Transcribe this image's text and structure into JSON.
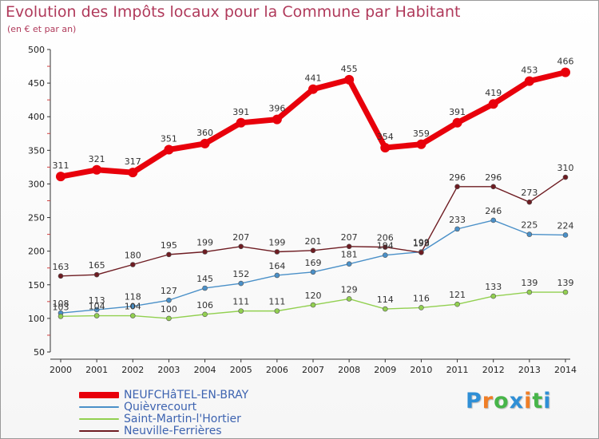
{
  "header": {
    "title": "Evolution des Impôts locaux pour la Commune par Habitant",
    "subtitle": "(en € et par an)"
  },
  "logo": {
    "text": "Proxiti",
    "letter_colors": [
      "#2f8fd6",
      "#f07e26",
      "#47b549",
      "#2f8fd6",
      "#f07e26",
      "#47b549",
      "#2f8fd6"
    ]
  },
  "chart_data": {
    "type": "line",
    "title": "Evolution des Impôts locaux pour la Commune par Habitant",
    "subtitle": "(en € et par an)",
    "xlabel": "",
    "ylabel": "",
    "x": [
      "2000",
      "2001",
      "2002",
      "2003",
      "2004",
      "2005",
      "2006",
      "2007",
      "2008",
      "2009",
      "2010",
      "2011",
      "2012",
      "2013",
      "2014"
    ],
    "ylim": [
      50,
      500
    ],
    "yticks": [
      50,
      100,
      150,
      200,
      250,
      300,
      350,
      400,
      450,
      500
    ],
    "grid": false,
    "legend_position": "bottom-left",
    "series": [
      {
        "name": "NEUFCHâTEL-EN-BRAY",
        "color": "#e8000b",
        "style": "thick",
        "values": [
          311,
          321,
          317,
          351,
          360,
          391,
          396,
          441,
          455,
          354,
          359,
          391,
          419,
          453,
          466
        ]
      },
      {
        "name": "Quièvrecourt",
        "color": "#4a90c8",
        "style": "thin",
        "values": [
          108,
          113,
          118,
          127,
          145,
          152,
          164,
          169,
          181,
          194,
          199,
          233,
          246,
          225,
          224
        ]
      },
      {
        "name": "Saint-Martin-l'Hortier",
        "color": "#92d050",
        "style": "thin",
        "values": [
          103,
          104,
          104,
          100,
          106,
          111,
          111,
          120,
          129,
          114,
          116,
          121,
          133,
          139,
          139
        ]
      },
      {
        "name": "Neuville-Ferrières",
        "color": "#6e1c22",
        "style": "thin",
        "values": [
          163,
          165,
          180,
          195,
          199,
          207,
          199,
          201,
          207,
          206,
          198,
          296,
          296,
          273,
          310
        ]
      }
    ]
  }
}
